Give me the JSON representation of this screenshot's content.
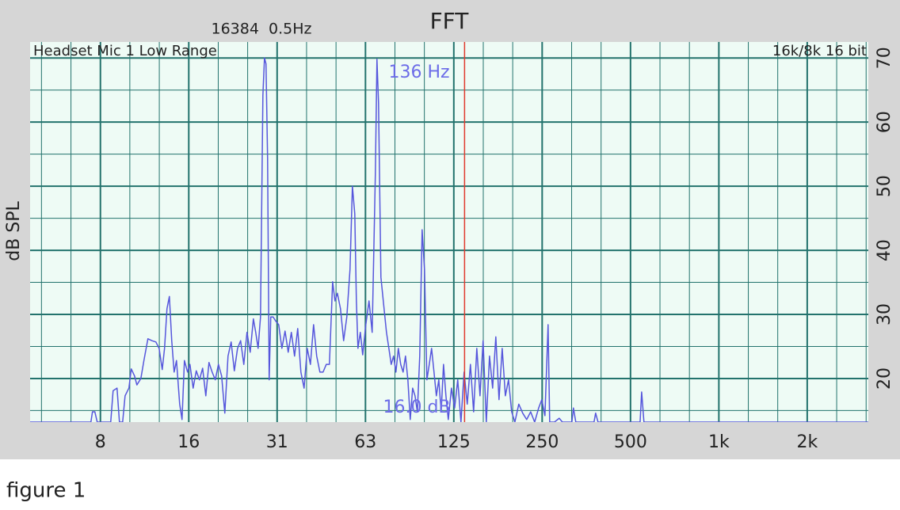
{
  "chart_data": {
    "type": "line",
    "title": "FFT",
    "subtitle": "16384  0.5Hz",
    "source_label": "Headset Mic 1 Low Range",
    "format_label": "16k/8k 16 bit",
    "ylabel": "dB SPL",
    "caption": "figure 1",
    "annotations": [
      "136 Hz",
      "16.0 dB"
    ],
    "cursor": {
      "x": 136,
      "color": "#e03a2e"
    },
    "log_x": true,
    "grid": true,
    "color": "#5656dc",
    "xlim": [
      4.5,
      3230
    ],
    "ylim": [
      13.2,
      72.5
    ],
    "xticks": [
      {
        "value": 7.8125,
        "label": "8"
      },
      {
        "value": 15.625,
        "label": "16"
      },
      {
        "value": 31.25,
        "label": "31"
      },
      {
        "value": 62.5,
        "label": "63"
      },
      125,
      250,
      500,
      {
        "value": 1000,
        "label": "1k"
      },
      {
        "value": 2000,
        "label": "2k"
      }
    ],
    "yticks": [
      20,
      30,
      40,
      50,
      60,
      70
    ],
    "xgrid": [
      4.92,
      6.2,
      9.84,
      12.4,
      19.69,
      24.8,
      39.37,
      49.61,
      78.75,
      99.21,
      157.5,
      198.4,
      315,
      396.9,
      630,
      793.7,
      1260,
      1587,
      2520,
      3175
    ],
    "ygrid": [
      15,
      25,
      35,
      45,
      55,
      65
    ],
    "x": [
      4.5,
      7.25,
      7.34,
      7.48,
      7.62,
      8.47,
      8.63,
      8.9,
      9.07,
      9.3,
      9.48,
      9.77,
      9.95,
      10.21,
      10.4,
      10.73,
      10.99,
      11.34,
      11.7,
      12.07,
      12.38,
      12.69,
      12.92,
      13.17,
      13.42,
      13.67,
      13.93,
      14.19,
      14.55,
      14.82,
      15.1,
      15.48,
      15.77,
      16.17,
      16.57,
      16.99,
      17.42,
      17.86,
      18.31,
      18.77,
      19.24,
      19.72,
      20.22,
      20.73,
      21.26,
      21.79,
      22.34,
      22.91,
      23.47,
      24.06,
      24.67,
      25.3,
      25.94,
      26.42,
      26.92,
      27.43,
      27.95,
      28.3,
      28.64,
      29.0,
      29.36,
      29.73,
      30.29,
      30.87,
      31.64,
      32.44,
      33.26,
      34.09,
      34.94,
      35.83,
      36.73,
      37.66,
      38.61,
      39.58,
      40.58,
      41.6,
      42.63,
      43.71,
      44.81,
      45.95,
      47.1,
      48.3,
      49.2,
      50.13,
      51.37,
      52.66,
      53.99,
      55.36,
      56.41,
      57.47,
      58.2,
      58.92,
      60.03,
      61.16,
      62.67,
      64.26,
      65.88,
      67.54,
      68.39,
      69.25,
      70.55,
      71.88,
      73.7,
      75.1,
      76.48,
      77.93,
      79.38,
      80.88,
      82.41,
      83.97,
      85.55,
      87.17,
      88.81,
      90.49,
      92.2,
      93.9,
      95.67,
      97.48,
      99.32,
      101.2,
      103.1,
      105.0,
      107.0,
      109.0,
      111.1,
      113.2,
      115.3,
      117.5,
      119.7,
      122.7,
      125.8,
      128.9,
      132.2,
      135.5,
      138.9,
      142.4,
      146.0,
      149.7,
      153.5,
      157.3,
      161.3,
      165.4,
      169.5,
      173.8,
      178.2,
      182.7,
      187.3,
      192.0,
      196.8,
      201.8,
      208.1,
      214.6,
      221.4,
      228.4,
      235.7,
      243.2,
      249.3,
      255.5,
      261.9,
      265.2,
      275.3,
      285.8,
      293.0,
      315.6,
      319.5,
      325.5,
      375.5,
      380.3,
      387.5,
      539.0,
      545.6,
      555.6,
      3227
    ],
    "values": [
      13.2,
      13.2,
      14.8,
      14.8,
      13.2,
      13.2,
      18.1,
      18.5,
      13.2,
      13.2,
      17.3,
      18.5,
      21.5,
      20.4,
      19.0,
      20.0,
      22.8,
      26.2,
      25.9,
      25.7,
      24.7,
      21.4,
      24.7,
      30.9,
      32.8,
      25.9,
      21.0,
      22.8,
      16.0,
      13.6,
      22.8,
      21.0,
      22.2,
      18.5,
      21.2,
      19.8,
      21.6,
      17.3,
      22.5,
      21.0,
      19.8,
      22.2,
      20.4,
      14.6,
      23.5,
      25.7,
      21.2,
      24.7,
      25.9,
      22.2,
      27.2,
      24.1,
      29.3,
      27.2,
      24.7,
      29.6,
      64.2,
      70.0,
      69.1,
      54.3,
      19.8,
      29.6,
      29.6,
      29.0,
      28.4,
      24.7,
      27.4,
      24.1,
      27.2,
      23.5,
      27.8,
      21.0,
      18.5,
      24.7,
      22.2,
      28.4,
      23.5,
      21.0,
      21.0,
      22.2,
      22.2,
      35.1,
      32.1,
      33.3,
      30.9,
      25.9,
      29.6,
      37.0,
      50.0,
      45.7,
      32.1,
      24.7,
      27.2,
      23.7,
      28.4,
      32.1,
      27.2,
      51.9,
      69.8,
      63.0,
      35.8,
      32.1,
      27.2,
      24.7,
      22.2,
      23.5,
      21.0,
      24.7,
      22.2,
      21.0,
      23.5,
      19.8,
      13.6,
      18.5,
      17.3,
      14.8,
      23.5,
      43.2,
      37.0,
      19.8,
      22.2,
      24.7,
      21.0,
      17.3,
      19.8,
      14.8,
      22.2,
      17.3,
      13.6,
      18.5,
      15.4,
      19.8,
      13.2,
      21.0,
      16.0,
      22.2,
      14.8,
      24.7,
      17.3,
      25.9,
      13.2,
      23.5,
      18.5,
      26.5,
      16.7,
      24.7,
      17.3,
      19.8,
      14.8,
      13.2,
      16.0,
      14.6,
      13.6,
      14.8,
      13.2,
      15.4,
      16.7,
      14.2,
      28.4,
      13.2,
      13.2,
      13.8,
      13.2,
      13.2,
      15.4,
      13.2,
      13.2,
      14.6,
      13.2,
      13.2,
      17.9,
      13.2,
      13.2
    ]
  }
}
